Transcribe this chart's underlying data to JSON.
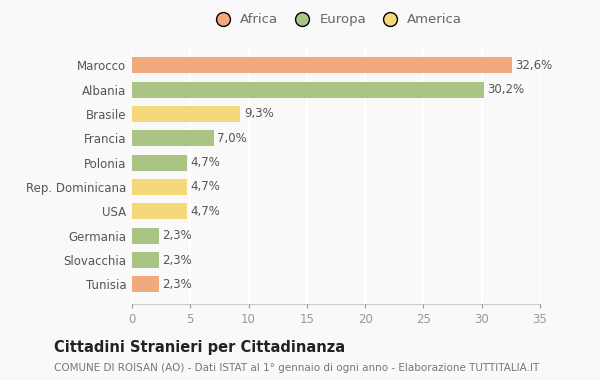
{
  "categories": [
    "Tunisia",
    "Slovacchia",
    "Germania",
    "USA",
    "Rep. Dominicana",
    "Polonia",
    "Francia",
    "Brasile",
    "Albania",
    "Marocco"
  ],
  "values": [
    2.3,
    2.3,
    2.3,
    4.7,
    4.7,
    4.7,
    7.0,
    9.3,
    30.2,
    32.6
  ],
  "labels": [
    "2,3%",
    "2,3%",
    "2,3%",
    "4,7%",
    "4,7%",
    "4,7%",
    "7,0%",
    "9,3%",
    "30,2%",
    "32,6%"
  ],
  "colors": [
    "#F2A97E",
    "#A9C484",
    "#A9C484",
    "#F5D87A",
    "#F5D87A",
    "#A9C484",
    "#A9C484",
    "#F5D87A",
    "#A9C484",
    "#F2A97E"
  ],
  "legend": [
    {
      "label": "Africa",
      "color": "#F2A97E"
    },
    {
      "label": "Europa",
      "color": "#A9C484"
    },
    {
      "label": "America",
      "color": "#F5D87A"
    }
  ],
  "xlim": [
    0,
    35
  ],
  "xticks": [
    0,
    5,
    10,
    15,
    20,
    25,
    30,
    35
  ],
  "title": "Cittadini Stranieri per Cittadinanza",
  "subtitle": "COMUNE DI ROISAN (AO) - Dati ISTAT al 1° gennaio di ogni anno - Elaborazione TUTTITALIA.IT",
  "background_color": "#f9f9f9",
  "grid_color": "#ffffff",
  "bar_height": 0.65,
  "label_fontsize": 8.5,
  "ytick_fontsize": 8.5,
  "xtick_fontsize": 8.5,
  "legend_fontsize": 9.5,
  "title_fontsize": 10.5,
  "subtitle_fontsize": 7.5
}
